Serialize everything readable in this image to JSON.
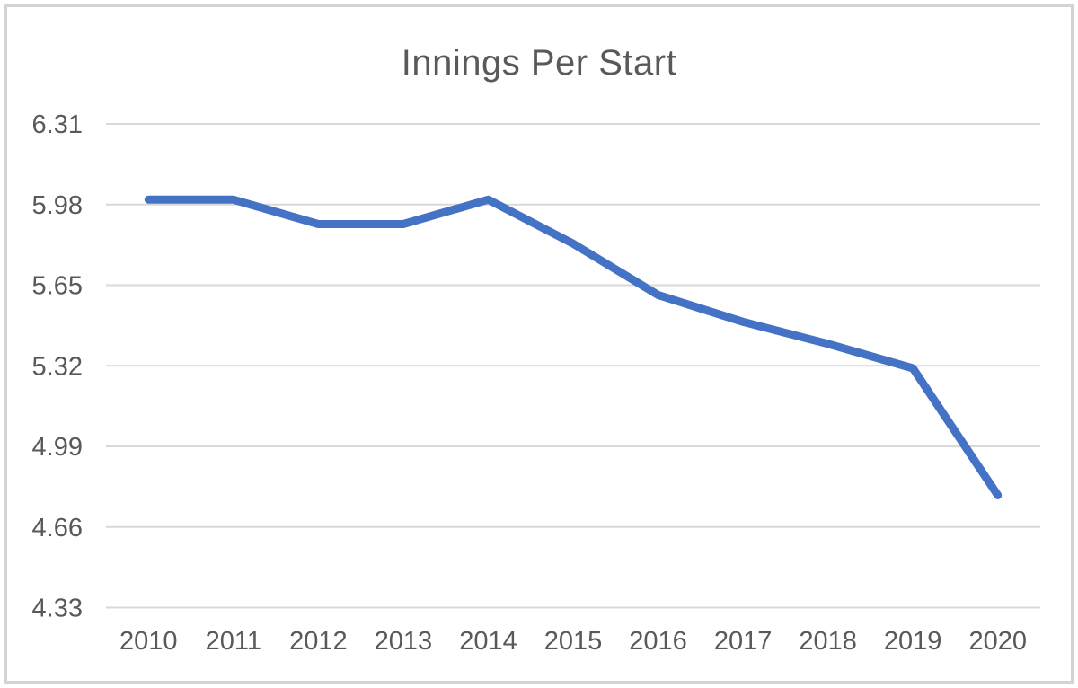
{
  "window": {
    "background_color": "#ffffff",
    "frame_border_color": "#d4d4d7"
  },
  "chart_data": {
    "type": "line",
    "title": "Innings Per Start",
    "categories": [
      "2010",
      "2011",
      "2012",
      "2013",
      "2014",
      "2015",
      "2016",
      "2017",
      "2018",
      "2019",
      "2020"
    ],
    "series": [
      {
        "name": "Innings Per Start",
        "values": [
          6.0,
          6.0,
          5.9,
          5.9,
          6.0,
          5.82,
          5.61,
          5.5,
          5.41,
          5.31,
          4.79
        ]
      }
    ],
    "y_tick_labels": [
      "6.31",
      "5.98",
      "5.65",
      "5.32",
      "4.99",
      "4.66",
      "4.33"
    ],
    "y_ticks": [
      6.31,
      5.98,
      5.65,
      5.32,
      4.99,
      4.66,
      4.33
    ],
    "ylim": [
      4.33,
      6.31
    ],
    "xlabel": "",
    "ylabel": "",
    "grid": true,
    "legend_position": "none",
    "line_color": "#4472C4",
    "line_width": 9,
    "gridline_color": "#D9D9D9",
    "text_color": "#595959",
    "title_color": "#595959"
  }
}
